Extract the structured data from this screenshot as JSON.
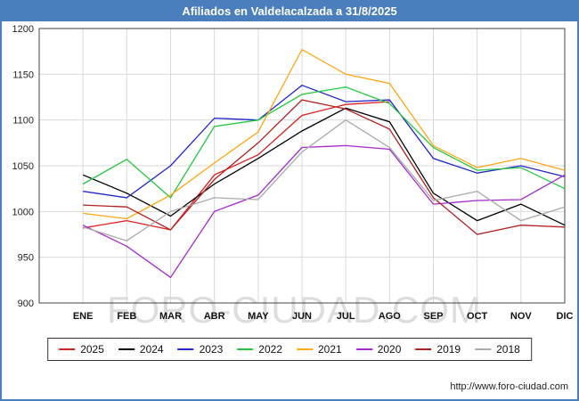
{
  "title": "Afiliados en Valdelacalzada a 31/8/2025",
  "watermark": "FORO-CIUDAD.COM",
  "footer": {
    "url": "http://www.foro-ciudad.com"
  },
  "colors": {
    "titlebar": "#4a7ebc",
    "frame_border": "#4a7ebc",
    "gridline": "#d9d9d9",
    "plot_border": "#444444"
  },
  "chart_data": {
    "type": "line",
    "title": "Afiliados en Valdelacalzada a 31/8/2025",
    "xlabel": "",
    "ylabel": "",
    "ylim": [
      900,
      1200
    ],
    "yticks": [
      900,
      950,
      1000,
      1050,
      1100,
      1150,
      1200
    ],
    "grid": true,
    "legend_position": "bottom",
    "categories": [
      "ENE",
      "FEB",
      "MAR",
      "ABR",
      "MAY",
      "JUN",
      "JUL",
      "AGO",
      "SEP",
      "OCT",
      "NOV",
      "DIC"
    ],
    "series": [
      {
        "name": "2025",
        "color": "#dc1f1f",
        "values": [
          982,
          990,
          980,
          1040,
          1062,
          1105,
          1117,
          1120,
          null,
          null,
          null,
          null
        ]
      },
      {
        "name": "2024",
        "color": "#000000",
        "values": [
          1040,
          1020,
          995,
          1030,
          1058,
          1088,
          1113,
          1098,
          1020,
          990,
          1008,
          985
        ]
      },
      {
        "name": "2023",
        "color": "#2424cc",
        "values": [
          1022,
          1015,
          1050,
          1102,
          1100,
          1138,
          1120,
          1122,
          1058,
          1042,
          1050,
          1038
        ]
      },
      {
        "name": "2022",
        "color": "#22c93e",
        "values": [
          1030,
          1057,
          1015,
          1093,
          1100,
          1128,
          1136,
          1118,
          1070,
          1045,
          1048,
          1025
        ]
      },
      {
        "name": "2021",
        "color": "#ffa60f",
        "values": [
          998,
          992,
          1018,
          1053,
          1087,
          1177,
          1150,
          1140,
          1072,
          1048,
          1058,
          1045
        ]
      },
      {
        "name": "2020",
        "color": "#a42ad0",
        "values": [
          985,
          962,
          928,
          1000,
          1018,
          1070,
          1072,
          1068,
          1008,
          1012,
          1013,
          1040
        ]
      },
      {
        "name": "2019",
        "color": "#b22222",
        "values": [
          1007,
          1005,
          980,
          1035,
          1075,
          1122,
          1112,
          1090,
          1015,
          975,
          985,
          983
        ]
      },
      {
        "name": "2018",
        "color": "#aaaaaa",
        "values": [
          983,
          968,
          1000,
          1015,
          1013,
          1065,
          1100,
          1070,
          1012,
          1022,
          990,
          1005
        ]
      }
    ]
  }
}
